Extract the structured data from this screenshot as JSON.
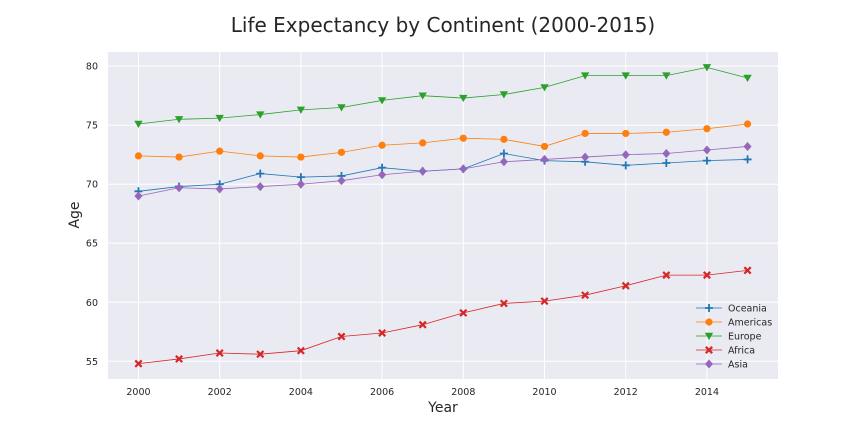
{
  "chart_data": {
    "type": "line",
    "title": "Life Expectancy by Continent (2000-2015)",
    "xlabel": "Year",
    "ylabel": "Age",
    "x": [
      2000,
      2001,
      2002,
      2003,
      2004,
      2005,
      2006,
      2007,
      2008,
      2009,
      2010,
      2011,
      2012,
      2013,
      2014,
      2015
    ],
    "xlim": [
      1999.25,
      2015.75
    ],
    "ylim": [
      53.5,
      81.2
    ],
    "xticks": [
      2000,
      2002,
      2004,
      2006,
      2008,
      2010,
      2012,
      2014
    ],
    "yticks": [
      55,
      60,
      65,
      70,
      75,
      80
    ],
    "grid": true,
    "legend_position": "lower-right",
    "series": [
      {
        "name": "Oceania",
        "color": "#1f77b4",
        "marker": "plus",
        "values": [
          69.4,
          69.8,
          70.0,
          70.9,
          70.6,
          70.7,
          71.4,
          71.1,
          71.3,
          72.6,
          72.0,
          71.9,
          71.6,
          71.8,
          72.0,
          72.1
        ]
      },
      {
        "name": "Americas",
        "color": "#ff7f0e",
        "marker": "circle",
        "values": [
          72.4,
          72.3,
          72.8,
          72.4,
          72.3,
          72.7,
          73.3,
          73.5,
          73.9,
          73.8,
          73.2,
          74.3,
          74.3,
          74.4,
          74.7,
          75.1
        ]
      },
      {
        "name": "Europe",
        "color": "#2ca02c",
        "marker": "triangle-down",
        "values": [
          75.1,
          75.5,
          75.6,
          75.9,
          76.3,
          76.5,
          77.1,
          77.5,
          77.3,
          77.6,
          78.2,
          79.2,
          79.2,
          79.2,
          79.9,
          79.0
        ]
      },
      {
        "name": "Africa",
        "color": "#d62728",
        "marker": "x",
        "values": [
          54.8,
          55.2,
          55.7,
          55.6,
          55.9,
          57.1,
          57.4,
          58.1,
          59.1,
          59.9,
          60.1,
          60.6,
          61.4,
          62.3,
          62.3,
          62.7
        ]
      },
      {
        "name": "Asia",
        "color": "#9467bd",
        "marker": "diamond",
        "values": [
          69.0,
          69.7,
          69.6,
          69.8,
          70.0,
          70.3,
          70.8,
          71.1,
          71.3,
          71.9,
          72.1,
          72.3,
          72.5,
          72.6,
          72.9,
          73.2
        ]
      }
    ]
  }
}
